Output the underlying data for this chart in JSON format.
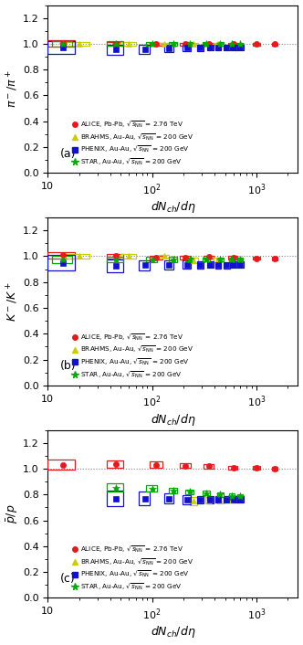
{
  "panel_a": {
    "ylabel": "$\\pi^-/\\pi^+$",
    "label": "(a)",
    "alice": {
      "x": [
        14,
        45,
        110,
        210,
        350,
        600,
        1000,
        1500
      ],
      "y": [
        1.005,
        1.0,
        0.998,
        0.997,
        0.998,
        0.997,
        0.997,
        0.997
      ],
      "xerr_lo": [
        4,
        8,
        15,
        25,
        40,
        60,
        80,
        100
      ],
      "xerr_hi": [
        4,
        8,
        15,
        25,
        40,
        60,
        80,
        100
      ],
      "yerr": [
        0.025,
        0.015,
        0.012,
        0.012,
        0.01,
        0.01,
        0.01,
        0.01
      ]
    },
    "brahms": {
      "x": [
        20,
        60,
        130,
        250,
        420
      ],
      "y": [
        1.0,
        1.0,
        1.0,
        1.0,
        1.0
      ],
      "xerr_lo": [
        5,
        10,
        15,
        25,
        35
      ],
      "xerr_hi": [
        5,
        10,
        15,
        25,
        35
      ],
      "yerr": [
        0.012,
        0.012,
        0.01,
        0.01,
        0.01
      ]
    },
    "phenix": {
      "x": [
        14,
        45,
        85,
        145,
        215,
        290,
        360,
        430,
        520,
        610,
        700
      ],
      "y": [
        0.97,
        0.955,
        0.96,
        0.965,
        0.97,
        0.968,
        0.972,
        0.972,
        0.972,
        0.972,
        0.97
      ],
      "xerr_lo": [
        4,
        8,
        10,
        15,
        18,
        22,
        25,
        28,
        35,
        40,
        50
      ],
      "xerr_hi": [
        4,
        8,
        10,
        15,
        18,
        22,
        25,
        28,
        35,
        40,
        50
      ],
      "yerr": [
        0.05,
        0.04,
        0.035,
        0.03,
        0.025,
        0.025,
        0.02,
        0.02,
        0.02,
        0.02,
        0.02
      ]
    },
    "star": {
      "x": [
        14,
        45,
        100,
        160,
        230,
        330,
        450,
        580,
        700
      ],
      "y": [
        1.0,
        1.0,
        1.0,
        1.0,
        1.0,
        1.0,
        1.0,
        0.997,
        0.997
      ],
      "xerr_lo": [
        3,
        8,
        12,
        15,
        20,
        25,
        30,
        35,
        40
      ],
      "xerr_hi": [
        3,
        8,
        12,
        15,
        20,
        25,
        30,
        35,
        40
      ],
      "yerr": [
        0.02,
        0.018,
        0.015,
        0.015,
        0.012,
        0.012,
        0.012,
        0.012,
        0.012
      ]
    }
  },
  "panel_b": {
    "ylabel": "$K^-/K^+$",
    "label": "(b)",
    "alice": {
      "x": [
        14,
        45,
        110,
        210,
        350,
        600,
        1000,
        1500
      ],
      "y": [
        1.01,
        1.0,
        0.99,
        0.99,
        0.993,
        0.988,
        0.985,
        0.982
      ],
      "xerr_lo": [
        4,
        8,
        15,
        25,
        40,
        60,
        80,
        100
      ],
      "xerr_hi": [
        4,
        8,
        15,
        25,
        40,
        60,
        80,
        100
      ],
      "yerr": [
        0.025,
        0.018,
        0.015,
        0.012,
        0.012,
        0.012,
        0.012,
        0.012
      ]
    },
    "brahms": {
      "x": [
        20,
        60,
        130,
        250,
        420
      ],
      "y": [
        1.0,
        1.0,
        1.0,
        0.97,
        0.97
      ],
      "xerr_lo": [
        5,
        10,
        15,
        25,
        35
      ],
      "xerr_hi": [
        5,
        10,
        15,
        25,
        35
      ],
      "yerr": [
        0.018,
        0.015,
        0.012,
        0.02,
        0.018
      ]
    },
    "phenix": {
      "x": [
        14,
        45,
        85,
        145,
        215,
        290,
        360,
        430,
        520,
        610,
        700
      ],
      "y": [
        0.95,
        0.925,
        0.93,
        0.935,
        0.935,
        0.933,
        0.933,
        0.93,
        0.93,
        0.933,
        0.933
      ],
      "xerr_lo": [
        4,
        8,
        10,
        15,
        18,
        22,
        25,
        28,
        35,
        40,
        50
      ],
      "xerr_hi": [
        4,
        8,
        10,
        15,
        18,
        22,
        25,
        28,
        35,
        40,
        50
      ],
      "yerr": [
        0.06,
        0.05,
        0.04,
        0.035,
        0.03,
        0.03,
        0.025,
        0.025,
        0.025,
        0.025,
        0.025
      ]
    },
    "star": {
      "x": [
        14,
        45,
        100,
        160,
        230,
        330,
        450,
        580,
        700
      ],
      "y": [
        0.975,
        0.975,
        0.975,
        0.975,
        0.975,
        0.975,
        0.975,
        0.975,
        0.975
      ],
      "xerr_lo": [
        3,
        8,
        12,
        15,
        20,
        25,
        30,
        35,
        40
      ],
      "xerr_hi": [
        3,
        8,
        12,
        15,
        20,
        25,
        30,
        35,
        40
      ],
      "yerr": [
        0.025,
        0.02,
        0.018,
        0.018,
        0.015,
        0.015,
        0.015,
        0.015,
        0.015
      ]
    }
  },
  "panel_c": {
    "ylabel": "$\\bar{p}/p$",
    "label": "(c)",
    "alice": {
      "x": [
        14,
        45,
        110,
        210,
        350,
        600,
        1000,
        1500
      ],
      "y": [
        1.03,
        1.035,
        1.03,
        1.025,
        1.02,
        1.01,
        1.005,
        1.0
      ],
      "xerr_lo": [
        4,
        8,
        15,
        25,
        40,
        60,
        80,
        100
      ],
      "xerr_hi": [
        4,
        8,
        15,
        25,
        40,
        60,
        80,
        100
      ],
      "yerr": [
        0.04,
        0.03,
        0.025,
        0.02,
        0.018,
        0.015,
        0.015,
        0.015
      ]
    },
    "brahms": {
      "x": [
        250,
        350,
        450,
        580
      ],
      "y": [
        0.75,
        0.755,
        0.755,
        0.76
      ],
      "xerr_lo": [
        20,
        25,
        30,
        35
      ],
      "xerr_hi": [
        20,
        25,
        30,
        35
      ],
      "yerr": [
        0.03,
        0.025,
        0.025,
        0.025
      ]
    },
    "phenix": {
      "x": [
        45,
        85,
        145,
        215,
        290,
        360,
        430,
        520,
        610,
        700
      ],
      "y": [
        0.77,
        0.77,
        0.77,
        0.76,
        0.76,
        0.76,
        0.76,
        0.76,
        0.76,
        0.76
      ],
      "xerr_lo": [
        8,
        10,
        15,
        18,
        22,
        25,
        28,
        35,
        40,
        50
      ],
      "xerr_hi": [
        8,
        10,
        15,
        18,
        22,
        25,
        28,
        35,
        40,
        50
      ],
      "yerr": [
        0.06,
        0.05,
        0.04,
        0.035,
        0.03,
        0.03,
        0.025,
        0.025,
        0.025,
        0.025
      ]
    },
    "star": {
      "x": [
        45,
        100,
        160,
        230,
        330,
        450,
        580,
        700
      ],
      "y": [
        0.855,
        0.845,
        0.83,
        0.82,
        0.81,
        0.8,
        0.79,
        0.785
      ],
      "xerr_lo": [
        8,
        12,
        15,
        20,
        25,
        30,
        35,
        40
      ],
      "xerr_hi": [
        8,
        12,
        15,
        20,
        25,
        30,
        35,
        40
      ],
      "yerr": [
        0.03,
        0.025,
        0.022,
        0.02,
        0.018,
        0.018,
        0.018,
        0.018
      ]
    }
  },
  "colors": {
    "alice": "#e41a1c",
    "brahms": "#cccc00",
    "phenix": "#1111cc",
    "star": "#00aa00"
  },
  "xlim": [
    10,
    2500
  ],
  "ylim": [
    0,
    1.3
  ],
  "xlabel": "$dN_{ch}/d\\eta$",
  "legend": {
    "alice": "ALICE, Pb-Pb, $\\sqrt{s_{\\rm NN}}$ = 2.76 TeV",
    "brahms": "BRAHMS, Au-Au, $\\sqrt{s_{\\rm NN}}$ = 200 GeV",
    "phenix": "PHENIX, Au-Au, $\\sqrt{s_{\\rm NN}}$ = 200 GeV",
    "star": "STAR, Au-Au, $\\sqrt{s_{\\rm NN}}$ = 200 GeV"
  }
}
